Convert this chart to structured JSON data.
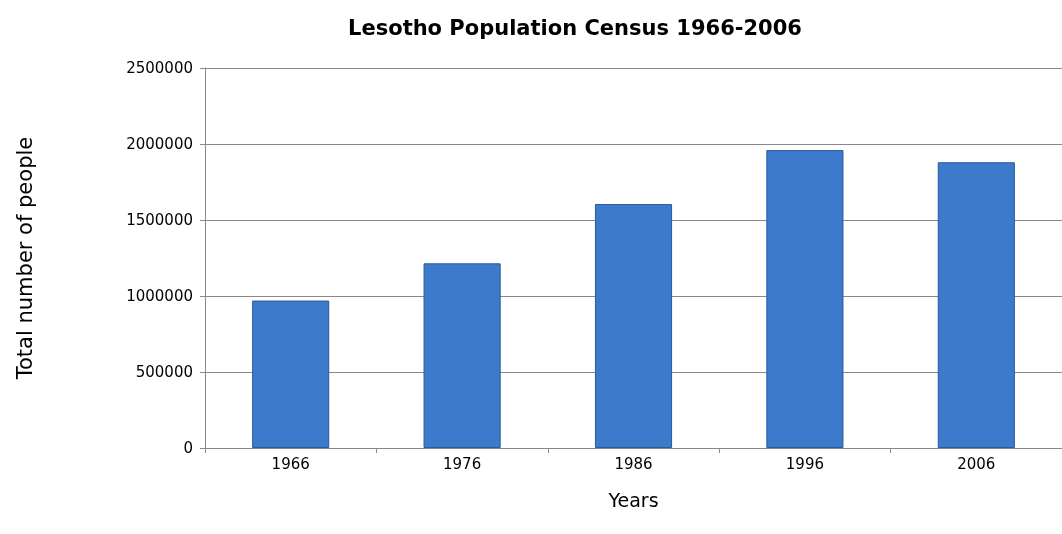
{
  "chart_data": {
    "type": "bar",
    "title": "Lesotho Population Census 1966-2006",
    "xlabel": "Years",
    "ylabel": "Total number of people",
    "categories": [
      "1966",
      "1976",
      "1986",
      "1996",
      "2006"
    ],
    "values": [
      970000,
      1215000,
      1605000,
      1960000,
      1880000
    ],
    "color": "#3d7acc",
    "ylim": [
      0,
      2500000
    ],
    "yticks": [
      0,
      500000,
      1000000,
      1500000,
      2000000,
      2500000
    ],
    "grid": "y"
  }
}
